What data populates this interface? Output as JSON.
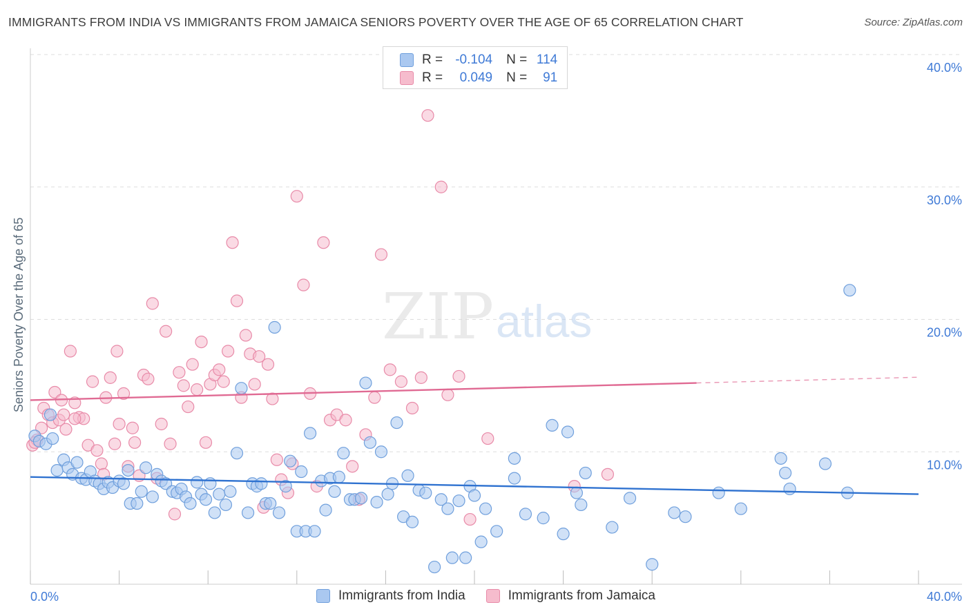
{
  "header": {
    "title": "IMMIGRANTS FROM INDIA VS IMMIGRANTS FROM JAMAICA SENIORS POVERTY OVER THE AGE OF 65 CORRELATION CHART",
    "source": "Source: ZipAtlas.com"
  },
  "watermark": {
    "zip": "ZIP",
    "atlas": "atlas"
  },
  "legend": {
    "india": {
      "r_label": "R =",
      "r_value": "-0.104",
      "n_label": "N =",
      "n_value": "114"
    },
    "jamaica": {
      "r_label": "R =",
      "r_value": "0.049",
      "n_label": "N =",
      "n_value": "91"
    }
  },
  "bottom_legend": {
    "india": "Immigrants from India",
    "jamaica": "Immigrants from Jamaica"
  },
  "colors": {
    "india_fill": "#aac8f0",
    "india_stroke": "#6f9fdc",
    "india_line": "#2f72d0",
    "jamaica_fill": "#f6bccd",
    "jamaica_stroke": "#e88aa8",
    "jamaica_line": "#e06a93",
    "tick_text": "#3f7ad6",
    "grid": "#dddddd"
  },
  "chart_data": {
    "type": "scatter",
    "ylabel": "Seniors Poverty Over the Age of 65",
    "xlabel": "",
    "xlim": [
      0,
      40
    ],
    "ylim": [
      0,
      40
    ],
    "x_tick_labels": [
      "0.0%",
      "40.0%"
    ],
    "y_ticks": [
      10,
      20,
      30,
      40
    ],
    "y_tick_labels": [
      "10.0%",
      "20.0%",
      "30.0%",
      "40.0%"
    ],
    "grid": true,
    "legend_position": "top-center",
    "series": [
      {
        "name": "Immigrants from India",
        "r": -0.104,
        "n": 114,
        "trend": {
          "x": [
            0,
            40
          ],
          "y": [
            8.1,
            6.8
          ]
        },
        "points": [
          [
            0.2,
            11.2
          ],
          [
            0.4,
            10.8
          ],
          [
            0.7,
            10.6
          ],
          [
            0.9,
            12.8
          ],
          [
            1.0,
            11.0
          ],
          [
            1.2,
            8.6
          ],
          [
            1.5,
            9.4
          ],
          [
            1.7,
            8.8
          ],
          [
            1.9,
            8.3
          ],
          [
            2.1,
            9.2
          ],
          [
            2.3,
            8.0
          ],
          [
            2.5,
            7.9
          ],
          [
            2.7,
            8.5
          ],
          [
            2.9,
            7.8
          ],
          [
            3.1,
            7.6
          ],
          [
            3.3,
            7.2
          ],
          [
            3.5,
            7.7
          ],
          [
            3.7,
            7.3
          ],
          [
            4.0,
            7.8
          ],
          [
            4.2,
            7.6
          ],
          [
            4.4,
            8.6
          ],
          [
            4.5,
            6.1
          ],
          [
            4.8,
            6.1
          ],
          [
            5.0,
            7.0
          ],
          [
            5.2,
            8.8
          ],
          [
            5.5,
            6.6
          ],
          [
            5.7,
            8.3
          ],
          [
            5.9,
            7.8
          ],
          [
            6.1,
            7.6
          ],
          [
            6.4,
            7.0
          ],
          [
            6.6,
            6.9
          ],
          [
            6.8,
            7.2
          ],
          [
            7.0,
            6.6
          ],
          [
            7.2,
            6.1
          ],
          [
            7.5,
            7.7
          ],
          [
            7.7,
            6.8
          ],
          [
            7.9,
            6.4
          ],
          [
            8.1,
            7.6
          ],
          [
            8.3,
            5.4
          ],
          [
            8.5,
            6.8
          ],
          [
            8.8,
            6.0
          ],
          [
            9.0,
            7.0
          ],
          [
            9.3,
            9.9
          ],
          [
            9.5,
            14.8
          ],
          [
            9.8,
            5.4
          ],
          [
            10.0,
            7.6
          ],
          [
            10.2,
            7.4
          ],
          [
            10.4,
            7.6
          ],
          [
            10.6,
            6.1
          ],
          [
            10.8,
            6.1
          ],
          [
            11.0,
            19.4
          ],
          [
            11.2,
            5.4
          ],
          [
            11.5,
            7.4
          ],
          [
            11.7,
            9.3
          ],
          [
            12.0,
            4.0
          ],
          [
            12.2,
            8.5
          ],
          [
            12.4,
            4.0
          ],
          [
            12.6,
            11.4
          ],
          [
            12.8,
            4.0
          ],
          [
            13.1,
            7.8
          ],
          [
            13.3,
            5.6
          ],
          [
            13.5,
            8.0
          ],
          [
            13.7,
            7.0
          ],
          [
            13.9,
            8.1
          ],
          [
            14.1,
            9.9
          ],
          [
            14.4,
            6.4
          ],
          [
            14.6,
            6.4
          ],
          [
            14.9,
            6.5
          ],
          [
            15.1,
            15.2
          ],
          [
            15.3,
            10.7
          ],
          [
            15.6,
            6.2
          ],
          [
            15.8,
            10.0
          ],
          [
            16.1,
            6.8
          ],
          [
            16.3,
            7.6
          ],
          [
            16.5,
            12.2
          ],
          [
            16.8,
            5.1
          ],
          [
            17.2,
            4.7
          ],
          [
            17.5,
            7.1
          ],
          [
            17.8,
            6.9
          ],
          [
            18.2,
            1.3
          ],
          [
            18.5,
            6.4
          ],
          [
            18.8,
            5.7
          ],
          [
            19.0,
            2.0
          ],
          [
            19.3,
            6.3
          ],
          [
            19.6,
            2.0
          ],
          [
            19.8,
            7.4
          ],
          [
            20.0,
            6.7
          ],
          [
            20.5,
            5.7
          ],
          [
            21.0,
            4.0
          ],
          [
            21.8,
            9.5
          ],
          [
            21.8,
            8.0
          ],
          [
            22.3,
            5.3
          ],
          [
            23.1,
            5.0
          ],
          [
            23.5,
            12.0
          ],
          [
            24.0,
            3.8
          ],
          [
            24.2,
            11.5
          ],
          [
            24.6,
            6.9
          ],
          [
            24.8,
            6.0
          ],
          [
            25.0,
            8.4
          ],
          [
            26.2,
            4.3
          ],
          [
            27.0,
            6.5
          ],
          [
            28.0,
            1.5
          ],
          [
            29.0,
            5.4
          ],
          [
            29.5,
            5.1
          ],
          [
            31.0,
            6.9
          ],
          [
            32.0,
            5.7
          ],
          [
            33.8,
            9.5
          ],
          [
            34.0,
            8.4
          ],
          [
            34.2,
            7.2
          ],
          [
            35.8,
            9.1
          ],
          [
            36.8,
            6.9
          ],
          [
            36.9,
            22.2
          ],
          [
            17.0,
            8.2
          ],
          [
            20.3,
            3.2
          ]
        ]
      },
      {
        "name": "Immigrants from Jamaica",
        "r": 0.049,
        "n": 91,
        "trend": {
          "x": [
            0,
            30
          ],
          "y": [
            13.9,
            15.2
          ]
        },
        "points": [
          [
            0.1,
            10.5
          ],
          [
            0.3,
            10.9
          ],
          [
            0.5,
            11.8
          ],
          [
            0.6,
            13.3
          ],
          [
            0.8,
            12.8
          ],
          [
            1.0,
            12.2
          ],
          [
            1.1,
            14.5
          ],
          [
            1.3,
            12.4
          ],
          [
            1.4,
            13.9
          ],
          [
            1.6,
            11.7
          ],
          [
            1.8,
            17.6
          ],
          [
            2.0,
            13.7
          ],
          [
            2.2,
            12.6
          ],
          [
            2.4,
            12.5
          ],
          [
            2.6,
            10.5
          ],
          [
            2.8,
            15.3
          ],
          [
            3.0,
            10.1
          ],
          [
            3.2,
            9.1
          ],
          [
            3.4,
            14.1
          ],
          [
            3.6,
            15.6
          ],
          [
            3.8,
            10.6
          ],
          [
            3.9,
            17.6
          ],
          [
            4.0,
            12.1
          ],
          [
            4.2,
            14.4
          ],
          [
            4.4,
            8.9
          ],
          [
            4.6,
            11.8
          ],
          [
            4.7,
            10.7
          ],
          [
            4.9,
            8.2
          ],
          [
            5.1,
            15.8
          ],
          [
            5.3,
            15.5
          ],
          [
            5.5,
            21.2
          ],
          [
            5.7,
            8.0
          ],
          [
            5.9,
            12.1
          ],
          [
            6.1,
            19.1
          ],
          [
            6.3,
            10.6
          ],
          [
            6.5,
            5.3
          ],
          [
            6.7,
            16.0
          ],
          [
            6.9,
            15.0
          ],
          [
            7.1,
            13.4
          ],
          [
            7.3,
            16.6
          ],
          [
            7.5,
            14.7
          ],
          [
            7.7,
            18.3
          ],
          [
            7.9,
            10.7
          ],
          [
            8.1,
            15.1
          ],
          [
            8.3,
            15.8
          ],
          [
            8.5,
            16.2
          ],
          [
            8.7,
            15.3
          ],
          [
            8.9,
            17.6
          ],
          [
            9.1,
            25.8
          ],
          [
            9.3,
            21.4
          ],
          [
            9.5,
            14.1
          ],
          [
            9.7,
            18.8
          ],
          [
            9.9,
            17.4
          ],
          [
            10.1,
            15.1
          ],
          [
            10.3,
            17.2
          ],
          [
            10.5,
            5.8
          ],
          [
            10.7,
            16.6
          ],
          [
            10.9,
            14.0
          ],
          [
            11.1,
            9.4
          ],
          [
            11.3,
            7.9
          ],
          [
            11.6,
            6.9
          ],
          [
            11.8,
            9.1
          ],
          [
            12.0,
            29.3
          ],
          [
            12.3,
            22.6
          ],
          [
            12.6,
            14.4
          ],
          [
            12.9,
            7.4
          ],
          [
            13.2,
            25.8
          ],
          [
            13.5,
            12.4
          ],
          [
            13.8,
            12.8
          ],
          [
            14.2,
            12.4
          ],
          [
            14.5,
            8.9
          ],
          [
            14.8,
            6.4
          ],
          [
            15.1,
            11.3
          ],
          [
            15.5,
            14.1
          ],
          [
            15.8,
            24.9
          ],
          [
            16.2,
            16.2
          ],
          [
            16.7,
            15.3
          ],
          [
            17.2,
            13.3
          ],
          [
            17.6,
            15.6
          ],
          [
            17.9,
            35.4
          ],
          [
            18.5,
            30.0
          ],
          [
            18.8,
            14.3
          ],
          [
            19.3,
            15.7
          ],
          [
            19.8,
            4.9
          ],
          [
            20.6,
            11.0
          ],
          [
            24.5,
            7.4
          ],
          [
            26.0,
            8.3
          ],
          [
            0.2,
            10.7
          ],
          [
            1.5,
            12.8
          ],
          [
            3.3,
            8.3
          ],
          [
            2.0,
            12.5
          ]
        ]
      }
    ]
  }
}
